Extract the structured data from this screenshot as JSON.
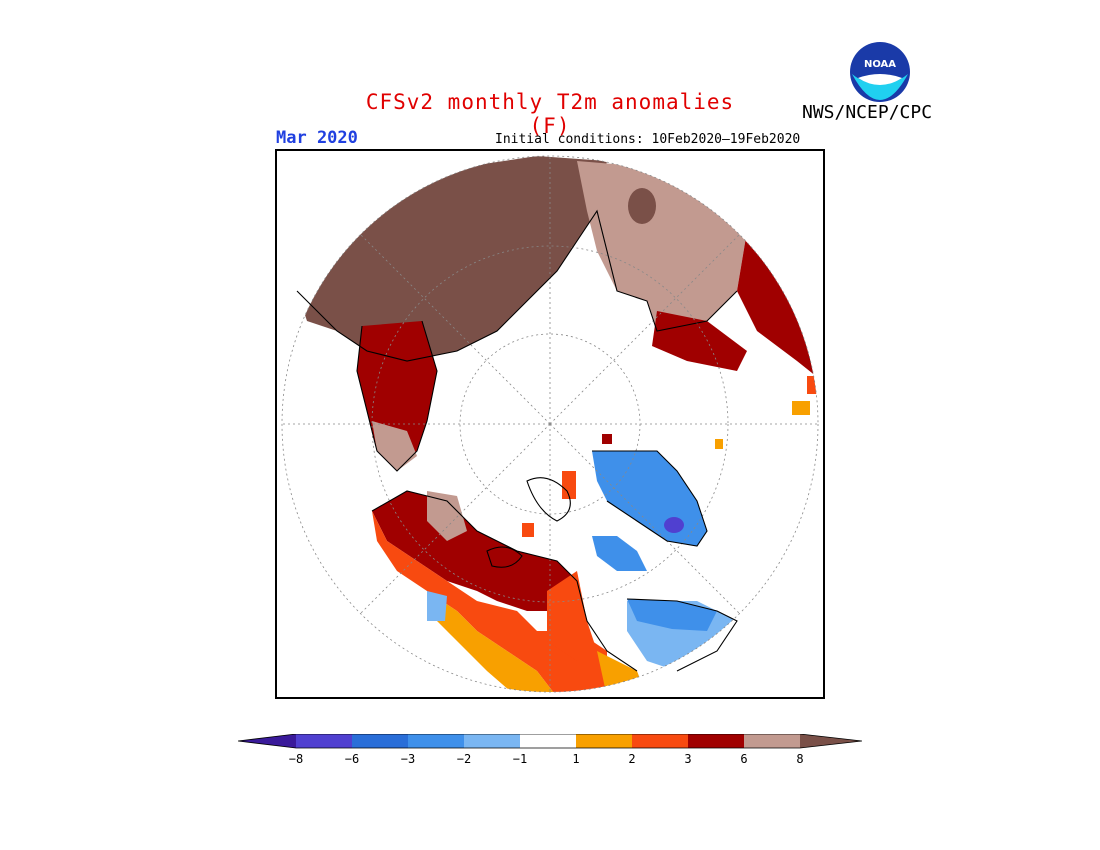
{
  "title": "CFSv2 monthly T2m anomalies (F)",
  "org": "NWS/NCEP/CPC",
  "logo_text": "NOAA",
  "valid_period": "Mar 2020",
  "initial_conditions": "Initial conditions: 10Feb2020–19Feb2020",
  "colors": {
    "title": "#e00000",
    "period": "#2040e0",
    "lt_minus8": "#3a1a9a",
    "m8_m6": "#5040d0",
    "m6_m3": "#2a6ed8",
    "m3_m2": "#3f90ea",
    "m2_m1": "#7ab6f2",
    "m1_p1": "#ffffff",
    "p1_p2": "#f8a000",
    "p2_p3": "#f84a10",
    "p3_p6": "#a00000",
    "p6_p8": "#c29a90",
    "gt_p8": "#7a5048"
  },
  "colorbar": {
    "labels": [
      "−8",
      "−6",
      "−3",
      "−2",
      "−1",
      "1",
      "2",
      "3",
      "6",
      "8"
    ]
  }
}
